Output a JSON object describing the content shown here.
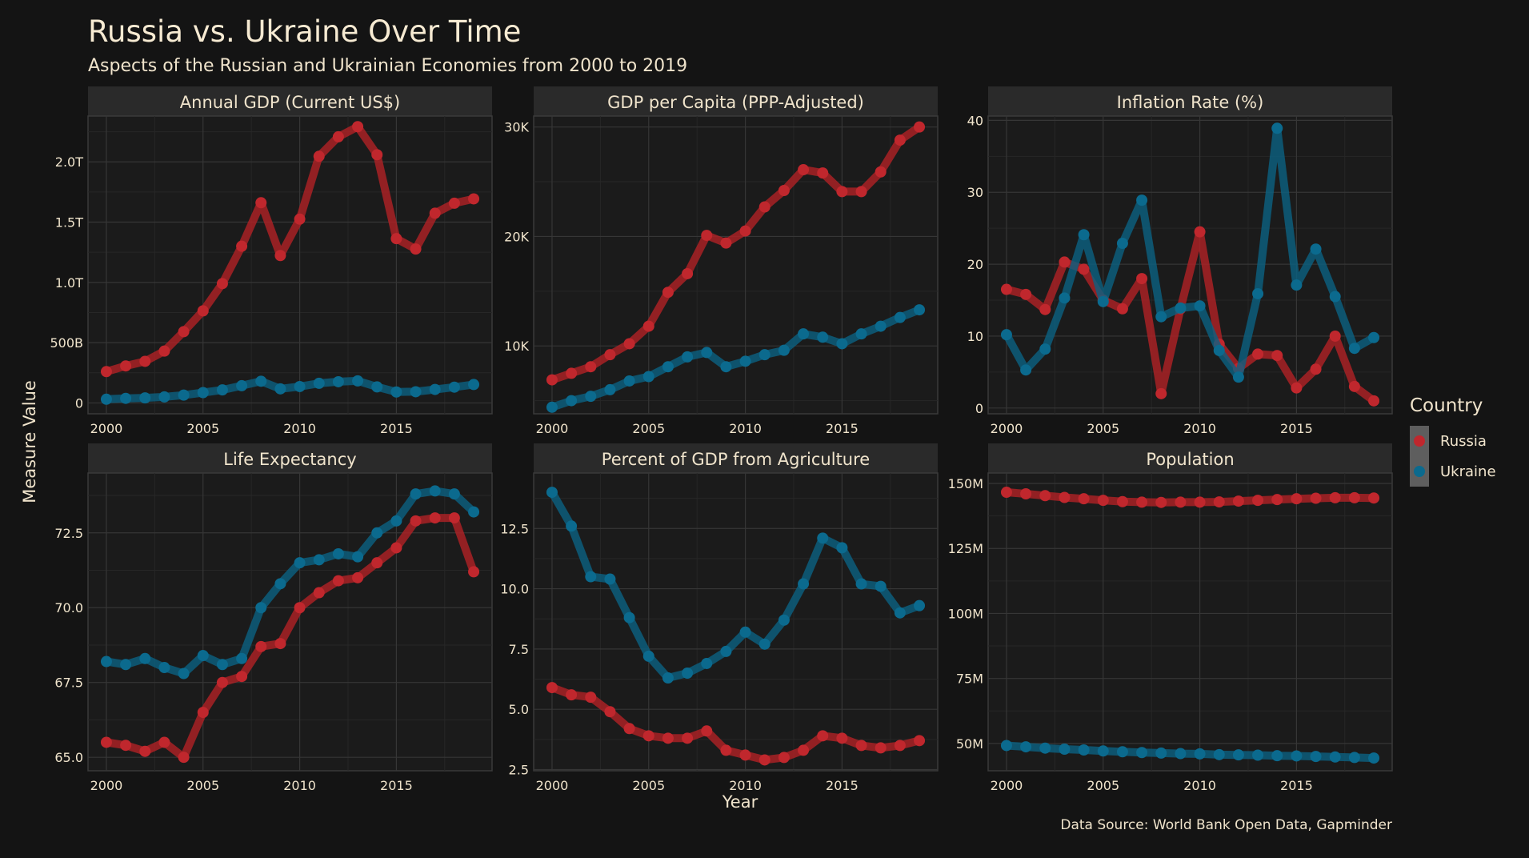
{
  "title": "Russia vs. Ukraine Over Time",
  "subtitle": "Aspects of the Russian and Ukrainian Economies from 2000 to 2019",
  "x_axis_title": "Year",
  "y_axis_title": "Measure Value",
  "caption": "Data Source: World Bank Open Data, Gapminder",
  "legend": {
    "title": "Country",
    "items": [
      {
        "label": "Russia",
        "color": "#b22226"
      },
      {
        "label": "Ukraine",
        "color": "#0b6182"
      }
    ]
  },
  "colors": {
    "background": "#141414",
    "panel": "#1b1b1b",
    "strip": "#2a2a2a",
    "russia": "#b22226",
    "ukraine": "#0b6182",
    "text": "#f0e4cc"
  },
  "chart_data": [
    {
      "type": "line",
      "title": "Annual GDP (Current US$)",
      "x": [
        2000,
        2001,
        2002,
        2003,
        2004,
        2005,
        2006,
        2007,
        2008,
        2009,
        2010,
        2011,
        2012,
        2013,
        2014,
        2015,
        2016,
        2017,
        2018,
        2019
      ],
      "xlim": [
        1999.05,
        2019.95
      ],
      "ylim": [
        -90,
        2380
      ],
      "xticks": [
        2000,
        2005,
        2010,
        2015
      ],
      "xtick_labels": [
        "2000",
        "2005",
        "2010",
        "2015"
      ],
      "yticks": [
        0,
        500,
        1000,
        1500,
        2000
      ],
      "ytick_labels": [
        "0",
        "500B",
        "1.0T",
        "1.5T",
        "2.0T"
      ],
      "unit": "billions US$",
      "series": [
        {
          "name": "Russia",
          "values": [
            260,
            307,
            345,
            430,
            591,
            764,
            990,
            1300,
            1661,
            1223,
            1525,
            2046,
            2208,
            2292,
            2059,
            1363,
            1277,
            1574,
            1657,
            1693
          ]
        },
        {
          "name": "Ukraine",
          "values": [
            31,
            38,
            42,
            50,
            65,
            86,
            108,
            143,
            180,
            117,
            136,
            163,
            176,
            183,
            133,
            91,
            93,
            112,
            131,
            153
          ]
        }
      ]
    },
    {
      "type": "line",
      "title": "GDP per Capita (PPP-Adjusted)",
      "x": [
        2000,
        2001,
        2002,
        2003,
        2004,
        2005,
        2006,
        2007,
        2008,
        2009,
        2010,
        2011,
        2012,
        2013,
        2014,
        2015,
        2016,
        2017,
        2018,
        2019
      ],
      "xlim": [
        1999.05,
        2019.95
      ],
      "ylim": [
        3800,
        31000
      ],
      "xticks": [
        2000,
        2005,
        2010,
        2015
      ],
      "xtick_labels": [
        "2000",
        "2005",
        "2010",
        "2015"
      ],
      "yticks": [
        10000,
        20000,
        30000
      ],
      "ytick_labels": [
        "10K",
        "20K",
        "30K"
      ],
      "series": [
        {
          "name": "Russia",
          "values": [
            6900,
            7500,
            8100,
            9200,
            10200,
            11800,
            14900,
            16600,
            20100,
            19400,
            20500,
            22700,
            24200,
            26100,
            25800,
            24100,
            24100,
            25900,
            28800,
            30000
          ]
        },
        {
          "name": "Ukraine",
          "values": [
            4400,
            5000,
            5400,
            6000,
            6800,
            7200,
            8100,
            9000,
            9400,
            8100,
            8600,
            9200,
            9600,
            11100,
            10800,
            10200,
            11100,
            11800,
            12600,
            13300
          ]
        }
      ]
    },
    {
      "type": "line",
      "title": "Inflation Rate (%)",
      "x": [
        2000,
        2001,
        2002,
        2003,
        2004,
        2005,
        2006,
        2007,
        2008,
        2009,
        2010,
        2011,
        2012,
        2013,
        2014,
        2015,
        2016,
        2017,
        2018,
        2019
      ],
      "xlim": [
        1999.05,
        2019.95
      ],
      "ylim": [
        -0.8,
        40.6
      ],
      "xticks": [
        2000,
        2005,
        2010,
        2015
      ],
      "xtick_labels": [
        "2000",
        "2005",
        "2010",
        "2015"
      ],
      "yticks": [
        0,
        10,
        20,
        30,
        40
      ],
      "ytick_labels": [
        "0",
        "10",
        "20",
        "30",
        "40"
      ],
      "series": [
        {
          "name": "Russia",
          "values": [
            16.5,
            15.8,
            13.7,
            20.3,
            19.3,
            15.0,
            13.8,
            18.0,
            2.0,
            13.8,
            24.5,
            8.9,
            5.5,
            7.5,
            7.3,
            2.8,
            5.4,
            10.0,
            3.0,
            1.0
          ]
        },
        {
          "name": "Ukraine",
          "values": [
            10.2,
            5.3,
            8.2,
            15.3,
            24.1,
            14.8,
            22.9,
            28.9,
            12.7,
            13.9,
            14.2,
            8.0,
            4.3,
            15.9,
            38.9,
            17.1,
            22.1,
            15.5,
            8.3,
            9.8
          ]
        }
      ]
    },
    {
      "type": "line",
      "title": "Life Expectancy",
      "x": [
        2000,
        2001,
        2002,
        2003,
        2004,
        2005,
        2006,
        2007,
        2008,
        2009,
        2010,
        2011,
        2012,
        2013,
        2014,
        2015,
        2016,
        2017,
        2018,
        2019
      ],
      "xlim": [
        1999.05,
        2019.95
      ],
      "ylim": [
        64.55,
        74.5
      ],
      "xticks": [
        2000,
        2005,
        2010,
        2015
      ],
      "xtick_labels": [
        "2000",
        "2005",
        "2010",
        "2015"
      ],
      "yticks": [
        65,
        67.5,
        70,
        72.5
      ],
      "ytick_labels": [
        "65.0",
        "67.5",
        "70.0",
        "72.5"
      ],
      "series": [
        {
          "name": "Russia",
          "values": [
            65.5,
            65.4,
            65.2,
            65.5,
            65.0,
            66.5,
            67.5,
            67.7,
            68.7,
            68.8,
            70.0,
            70.5,
            70.9,
            71.0,
            71.5,
            72.0,
            72.9,
            73.0,
            73.0,
            71.2
          ]
        },
        {
          "name": "Ukraine",
          "values": [
            68.2,
            68.1,
            68.3,
            68.0,
            67.8,
            68.4,
            68.1,
            68.3,
            70.0,
            70.8,
            71.5,
            71.6,
            71.8,
            71.7,
            72.5,
            72.9,
            73.8,
            73.9,
            73.8,
            73.2
          ]
        }
      ]
    },
    {
      "type": "line",
      "title": "Percent of GDP from Agriculture",
      "x": [
        2000,
        2001,
        2002,
        2003,
        2004,
        2005,
        2006,
        2007,
        2008,
        2009,
        2010,
        2011,
        2012,
        2013,
        2014,
        2015,
        2016,
        2017,
        2018,
        2019
      ],
      "xlim": [
        1999.05,
        2019.95
      ],
      "ylim": [
        2.45,
        14.8
      ],
      "xticks": [
        2000,
        2005,
        2010,
        2015
      ],
      "xtick_labels": [
        "2000",
        "2005",
        "2010",
        "2015"
      ],
      "yticks": [
        2.5,
        5,
        7.5,
        10,
        12.5
      ],
      "ytick_labels": [
        "2.5",
        "5.0",
        "7.5",
        "10.0",
        "12.5"
      ],
      "series": [
        {
          "name": "Russia",
          "values": [
            5.9,
            5.6,
            5.5,
            4.9,
            4.2,
            3.9,
            3.8,
            3.8,
            4.1,
            3.3,
            3.1,
            2.9,
            3.0,
            3.3,
            3.9,
            3.8,
            3.5,
            3.4,
            3.5,
            3.7
          ]
        },
        {
          "name": "Ukraine",
          "values": [
            14.0,
            12.6,
            10.5,
            10.4,
            8.8,
            7.2,
            6.3,
            6.5,
            6.9,
            7.4,
            8.2,
            7.7,
            8.7,
            10.2,
            12.1,
            11.7,
            10.2,
            10.1,
            9.0,
            9.3
          ]
        }
      ]
    },
    {
      "type": "line",
      "title": "Population",
      "x": [
        2000,
        2001,
        2002,
        2003,
        2004,
        2005,
        2006,
        2007,
        2008,
        2009,
        2010,
        2011,
        2012,
        2013,
        2014,
        2015,
        2016,
        2017,
        2018,
        2019
      ],
      "xlim": [
        1999.05,
        2019.95
      ],
      "ylim": [
        39500000,
        154000000
      ],
      "xticks": [
        2000,
        2005,
        2010,
        2015
      ],
      "xtick_labels": [
        "2000",
        "2005",
        "2010",
        "2015"
      ],
      "yticks": [
        50000000,
        75000000,
        100000000,
        125000000,
        150000000
      ],
      "ytick_labels": [
        "50M",
        "75M",
        "100M",
        "125M",
        "150M"
      ],
      "series": [
        {
          "name": "Russia",
          "values": [
            146600000,
            146000000,
            145300000,
            144600000,
            144100000,
            143500000,
            143000000,
            142800000,
            142700000,
            142800000,
            142800000,
            142900000,
            143200000,
            143500000,
            143800000,
            144100000,
            144300000,
            144500000,
            144500000,
            144400000
          ]
        },
        {
          "name": "Ukraine",
          "values": [
            49200000,
            48700000,
            48200000,
            47800000,
            47500000,
            47100000,
            46800000,
            46500000,
            46300000,
            46100000,
            46000000,
            45700000,
            45600000,
            45500000,
            45300000,
            45200000,
            45000000,
            44800000,
            44600000,
            44400000
          ]
        }
      ]
    }
  ]
}
